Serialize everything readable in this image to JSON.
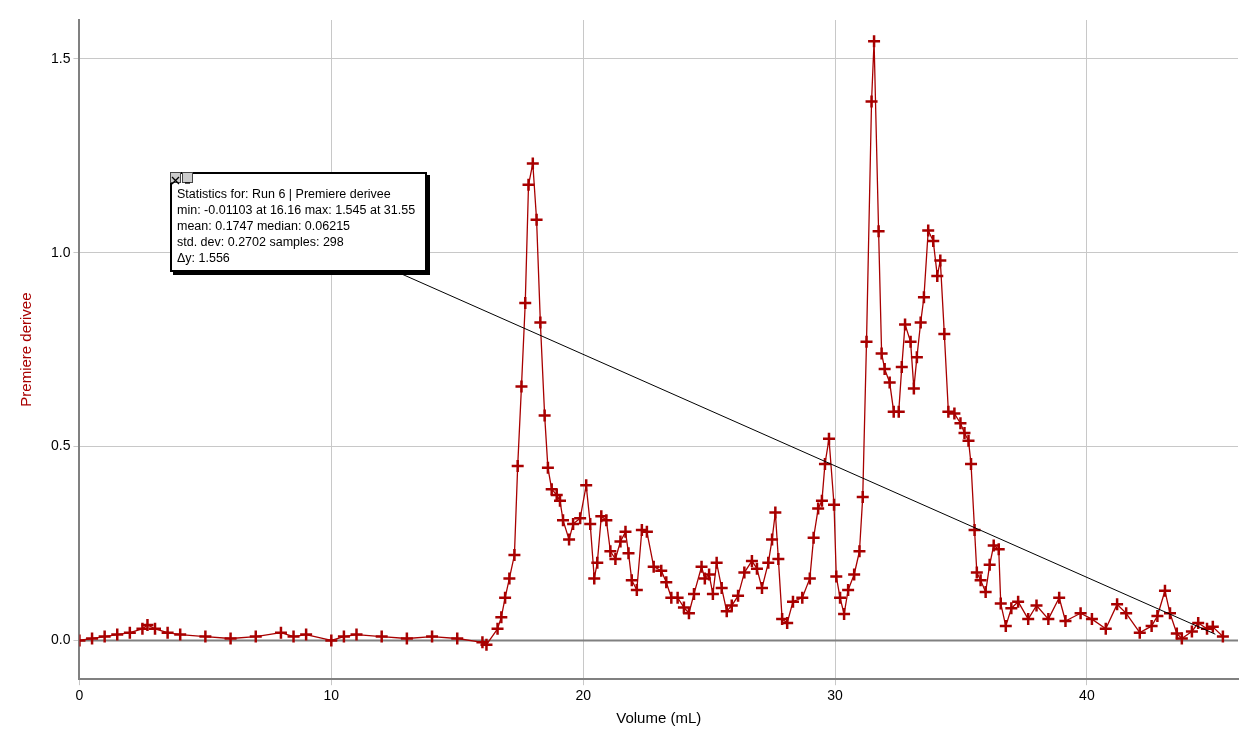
{
  "chart_data": {
    "type": "line",
    "xlabel": "Volume (mL)",
    "ylabel": "Premiere derivee",
    "xlim": [
      0,
      46
    ],
    "ylim": [
      -0.1,
      1.6
    ],
    "xticks": [
      0,
      10,
      20,
      30,
      40
    ],
    "yticks": [
      {
        "value": 0,
        "label": "0.0"
      },
      {
        "value": 0.5,
        "label": "0.5"
      },
      {
        "value": 1,
        "label": "1.0"
      },
      {
        "value": 1.5,
        "label": "1.5"
      }
    ],
    "grid": true,
    "legend": false,
    "marker": "cross",
    "line_style": "solid",
    "series": [
      {
        "color": "#a80000",
        "x": [
          0,
          0.5,
          1,
          1.5,
          2,
          2.5,
          2.7,
          3,
          3.5,
          4,
          5,
          6,
          7,
          8,
          8.5,
          9,
          10,
          10.5,
          11,
          12,
          13,
          14,
          15,
          16,
          16.16,
          16.6,
          16.75,
          16.9,
          17.07,
          17.27,
          17.4,
          17.55,
          17.7,
          17.83,
          18.0,
          18.15,
          18.3,
          18.47,
          18.6,
          18.75,
          18.95,
          19.08,
          19.2,
          19.44,
          19.6,
          19.88,
          20.12,
          20.28,
          20.44,
          20.56,
          20.72,
          20.92,
          21.08,
          21.28,
          21.48,
          21.68,
          21.8,
          21.93,
          22.13,
          22.33,
          22.53,
          22.8,
          23.1,
          23.3,
          23.5,
          23.75,
          24.0,
          24.2,
          24.4,
          24.7,
          24.83,
          25.0,
          25.15,
          25.3,
          25.5,
          25.7,
          25.9,
          26.15,
          26.4,
          26.7,
          26.9,
          27.1,
          27.35,
          27.5,
          27.63,
          27.75,
          27.9,
          28.1,
          28.33,
          28.7,
          29.0,
          29.15,
          29.33,
          29.48,
          29.6,
          29.76,
          29.96,
          30.05,
          30.2,
          30.36,
          30.52,
          30.76,
          30.97,
          31.1,
          31.25,
          31.45,
          31.55,
          31.73,
          31.85,
          31.97,
          32.17,
          32.33,
          32.53,
          32.65,
          32.78,
          33.0,
          33.13,
          33.25,
          33.4,
          33.53,
          33.7,
          33.9,
          34.06,
          34.18,
          34.34,
          34.5,
          34.74,
          34.98,
          35.14,
          35.3,
          35.4,
          35.54,
          35.63,
          35.78,
          35.98,
          36.14,
          36.3,
          36.5,
          36.58,
          36.78,
          37.0,
          37.27,
          37.67,
          38.0,
          38.47,
          38.9,
          39.15,
          39.75,
          40.2,
          40.75,
          41.2,
          41.56,
          42.1,
          42.57,
          42.8,
          43.1,
          43.3,
          43.57,
          43.77,
          44.17,
          44.42,
          44.77,
          45.0,
          45.4
        ],
        "values": [
          0,
          0.005,
          0.01,
          0.015,
          0.02,
          0.03,
          0.04,
          0.03,
          0.02,
          0.015,
          0.01,
          0.005,
          0.01,
          0.02,
          0.01,
          0.015,
          0,
          0.01,
          0.015,
          0.01,
          0.005,
          0.01,
          0.005,
          -0.005,
          -0.011,
          0.03,
          0.06,
          0.11,
          0.16,
          0.22,
          0.45,
          0.655,
          0.87,
          1.175,
          1.23,
          1.085,
          0.82,
          0.58,
          0.445,
          0.39,
          0.375,
          0.36,
          0.31,
          0.26,
          0.3,
          0.315,
          0.4,
          0.3,
          0.16,
          0.2,
          0.32,
          0.31,
          0.23,
          0.21,
          0.255,
          0.28,
          0.225,
          0.155,
          0.13,
          0.285,
          0.28,
          0.19,
          0.18,
          0.15,
          0.11,
          0.11,
          0.085,
          0.07,
          0.12,
          0.19,
          0.16,
          0.17,
          0.12,
          0.2,
          0.135,
          0.075,
          0.09,
          0.115,
          0.175,
          0.205,
          0.185,
          0.135,
          0.2,
          0.26,
          0.33,
          0.21,
          0.055,
          0.045,
          0.1,
          0.11,
          0.16,
          0.265,
          0.34,
          0.36,
          0.455,
          0.52,
          0.35,
          0.165,
          0.11,
          0.068,
          0.13,
          0.17,
          0.23,
          0.37,
          0.77,
          1.39,
          1.545,
          1.055,
          0.74,
          0.7,
          0.665,
          0.59,
          0.59,
          0.705,
          0.815,
          0.77,
          0.65,
          0.73,
          0.82,
          0.885,
          1.057,
          1.03,
          0.94,
          0.98,
          0.79,
          0.59,
          0.585,
          0.56,
          0.535,
          0.515,
          0.455,
          0.285,
          0.175,
          0.155,
          0.125,
          0.195,
          0.245,
          0.235,
          0.095,
          0.037,
          0.083,
          0.1,
          0.055,
          0.09,
          0.055,
          0.11,
          0.05,
          0.07,
          0.055,
          0.03,
          0.093,
          0.07,
          0.02,
          0.037,
          0.063,
          0.128,
          0.07,
          0.018,
          0.005,
          0.023,
          0.045,
          0.03,
          0.035,
          0.01
        ]
      }
    ],
    "annotations": [
      {
        "text": "Statistics for: Run 6 | Premiere derivee\nmin: -0.01103 at 16.16 max: 1.545 at 31.55\nmean: 0.1747 median: 0.06215\nstd. dev: 0.2702 samples: 298\nΔy: 1.556",
        "x": 45.1,
        "y": 0.016
      }
    ]
  }
}
